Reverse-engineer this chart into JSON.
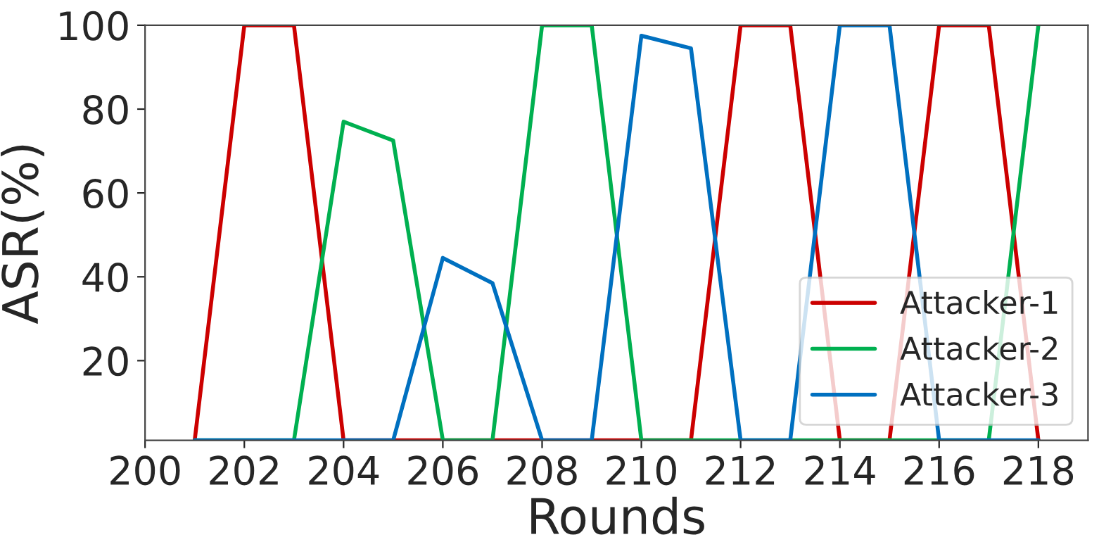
{
  "chart_data": {
    "type": "line",
    "xlabel": "Rounds",
    "ylabel": "ASR(%)",
    "x": [
      201,
      202,
      203,
      204,
      205,
      206,
      207,
      208,
      209,
      210,
      211,
      212,
      213,
      214,
      215,
      216,
      217,
      218
    ],
    "series": [
      {
        "name": "Attacker-1",
        "color": "#cc0000",
        "values": [
          1,
          100,
          100,
          1,
          1,
          1,
          1,
          1,
          1,
          1,
          1,
          100,
          100,
          1,
          1,
          100,
          100,
          1
        ]
      },
      {
        "name": "Attacker-2",
        "color": "#00b050",
        "values": [
          1,
          1,
          1,
          77,
          72.5,
          1,
          1,
          100,
          100,
          1,
          1,
          1,
          1,
          1,
          1,
          1,
          1,
          100
        ]
      },
      {
        "name": "Attacker-3",
        "color": "#0070c0",
        "values": [
          1,
          1,
          1,
          1,
          1,
          44.5,
          38.5,
          1,
          1,
          97.5,
          94.5,
          1,
          1,
          100,
          100,
          1,
          1,
          1
        ]
      }
    ],
    "xlim": [
      200,
      219
    ],
    "ylim": [
      1,
      100
    ],
    "xticks": [
      200,
      202,
      204,
      206,
      208,
      210,
      212,
      214,
      216,
      218
    ],
    "yticks": [
      20,
      40,
      60,
      80,
      100
    ],
    "grid": false,
    "legend": "lower right",
    "line_style": "solid",
    "marker": "none"
  }
}
